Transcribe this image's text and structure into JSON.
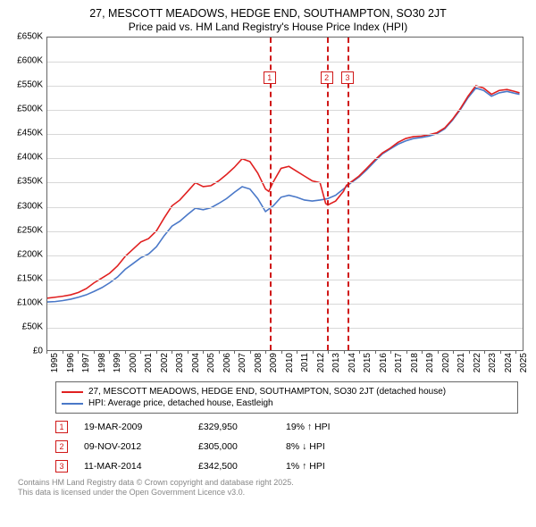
{
  "title": {
    "line1": "27, MESCOTT MEADOWS, HEDGE END, SOUTHAMPTON, SO30 2JT",
    "line2": "Price paid vs. HM Land Registry's House Price Index (HPI)",
    "fontsize_line1": 12.5,
    "fontsize_line2": 12,
    "color": "#000000"
  },
  "chart": {
    "type": "line",
    "background_color": "#ffffff",
    "grid_color": "#d8d8d8",
    "border_color": "#666666",
    "x": {
      "min": 1995,
      "max": 2025.5,
      "ticks": [
        1995,
        1996,
        1997,
        1998,
        1999,
        2000,
        2001,
        2002,
        2003,
        2004,
        2005,
        2006,
        2007,
        2008,
        2009,
        2010,
        2011,
        2012,
        2013,
        2014,
        2015,
        2016,
        2017,
        2018,
        2019,
        2020,
        2021,
        2022,
        2023,
        2024,
        2025
      ],
      "label_fontsize": 10,
      "label_rotation": -90
    },
    "y": {
      "min": 0,
      "max": 650000,
      "ticks": [
        0,
        50000,
        100000,
        150000,
        200000,
        250000,
        300000,
        350000,
        400000,
        450000,
        500000,
        550000,
        600000,
        650000
      ],
      "tick_labels": [
        "£0",
        "£50K",
        "£100K",
        "£150K",
        "£200K",
        "£250K",
        "£300K",
        "£350K",
        "£400K",
        "£450K",
        "£500K",
        "£550K",
        "£600K",
        "£650K"
      ],
      "label_fontsize": 10
    },
    "event_lines": {
      "color": "#d01818",
      "dash": "4,3",
      "width": 2,
      "marker_box_size": 14,
      "marker_font_size": 9,
      "events": [
        {
          "n": "1",
          "x": 2009.21
        },
        {
          "n": "2",
          "x": 2012.86
        },
        {
          "n": "3",
          "x": 2014.19
        }
      ]
    },
    "series": [
      {
        "name": "property",
        "label": "27, MESCOTT MEADOWS, HEDGE END, SOUTHAMPTON, SO30 2JT (detached house)",
        "color": "#e02020",
        "line_width": 1.6,
        "points": [
          [
            1995.0,
            108000
          ],
          [
            1995.5,
            110000
          ],
          [
            1996.0,
            112000
          ],
          [
            1996.5,
            115000
          ],
          [
            1997.0,
            120000
          ],
          [
            1997.5,
            128000
          ],
          [
            1998.0,
            140000
          ],
          [
            1998.5,
            150000
          ],
          [
            1999.0,
            160000
          ],
          [
            1999.5,
            175000
          ],
          [
            2000.0,
            195000
          ],
          [
            2000.5,
            210000
          ],
          [
            2001.0,
            225000
          ],
          [
            2001.5,
            232000
          ],
          [
            2002.0,
            248000
          ],
          [
            2002.5,
            275000
          ],
          [
            2003.0,
            300000
          ],
          [
            2003.5,
            312000
          ],
          [
            2004.0,
            330000
          ],
          [
            2004.5,
            348000
          ],
          [
            2005.0,
            340000
          ],
          [
            2005.5,
            342000
          ],
          [
            2006.0,
            352000
          ],
          [
            2006.5,
            365000
          ],
          [
            2007.0,
            380000
          ],
          [
            2007.5,
            398000
          ],
          [
            2008.0,
            392000
          ],
          [
            2008.5,
            368000
          ],
          [
            2009.0,
            335000
          ],
          [
            2009.21,
            329950
          ],
          [
            2009.5,
            350000
          ],
          [
            2010.0,
            378000
          ],
          [
            2010.5,
            382000
          ],
          [
            2011.0,
            372000
          ],
          [
            2011.5,
            362000
          ],
          [
            2012.0,
            352000
          ],
          [
            2012.5,
            348000
          ],
          [
            2012.86,
            305000
          ],
          [
            2013.0,
            302000
          ],
          [
            2013.5,
            310000
          ],
          [
            2014.0,
            330000
          ],
          [
            2014.19,
            342500
          ],
          [
            2014.5,
            350000
          ],
          [
            2015.0,
            362000
          ],
          [
            2015.5,
            378000
          ],
          [
            2016.0,
            395000
          ],
          [
            2016.5,
            410000
          ],
          [
            2017.0,
            420000
          ],
          [
            2017.5,
            432000
          ],
          [
            2018.0,
            440000
          ],
          [
            2018.5,
            444000
          ],
          [
            2019.0,
            445000
          ],
          [
            2019.5,
            448000
          ],
          [
            2020.0,
            452000
          ],
          [
            2020.5,
            462000
          ],
          [
            2021.0,
            480000
          ],
          [
            2021.5,
            502000
          ],
          [
            2022.0,
            528000
          ],
          [
            2022.5,
            550000
          ],
          [
            2023.0,
            545000
          ],
          [
            2023.5,
            532000
          ],
          [
            2024.0,
            540000
          ],
          [
            2024.5,
            542000
          ],
          [
            2025.0,
            538000
          ],
          [
            2025.3,
            535000
          ]
        ]
      },
      {
        "name": "hpi",
        "label": "HPI: Average price, detached house, Eastleigh",
        "color": "#4a78c8",
        "line_width": 1.6,
        "points": [
          [
            1995.0,
            100000
          ],
          [
            1995.5,
            101000
          ],
          [
            1996.0,
            103000
          ],
          [
            1996.5,
            106000
          ],
          [
            1997.0,
            110000
          ],
          [
            1997.5,
            115000
          ],
          [
            1998.0,
            122000
          ],
          [
            1998.5,
            130000
          ],
          [
            1999.0,
            140000
          ],
          [
            1999.5,
            152000
          ],
          [
            2000.0,
            168000
          ],
          [
            2000.5,
            180000
          ],
          [
            2001.0,
            192000
          ],
          [
            2001.5,
            200000
          ],
          [
            2002.0,
            215000
          ],
          [
            2002.5,
            238000
          ],
          [
            2003.0,
            258000
          ],
          [
            2003.5,
            268000
          ],
          [
            2004.0,
            282000
          ],
          [
            2004.5,
            295000
          ],
          [
            2005.0,
            292000
          ],
          [
            2005.5,
            296000
          ],
          [
            2006.0,
            305000
          ],
          [
            2006.5,
            315000
          ],
          [
            2007.0,
            328000
          ],
          [
            2007.5,
            340000
          ],
          [
            2008.0,
            335000
          ],
          [
            2008.5,
            315000
          ],
          [
            2009.0,
            288000
          ],
          [
            2009.5,
            300000
          ],
          [
            2010.0,
            318000
          ],
          [
            2010.5,
            322000
          ],
          [
            2011.0,
            318000
          ],
          [
            2011.5,
            312000
          ],
          [
            2012.0,
            310000
          ],
          [
            2012.5,
            312000
          ],
          [
            2013.0,
            315000
          ],
          [
            2013.5,
            322000
          ],
          [
            2014.0,
            335000
          ],
          [
            2014.5,
            348000
          ],
          [
            2015.0,
            360000
          ],
          [
            2015.5,
            375000
          ],
          [
            2016.0,
            392000
          ],
          [
            2016.5,
            408000
          ],
          [
            2017.0,
            418000
          ],
          [
            2017.5,
            428000
          ],
          [
            2018.0,
            435000
          ],
          [
            2018.5,
            440000
          ],
          [
            2019.0,
            442000
          ],
          [
            2019.5,
            445000
          ],
          [
            2020.0,
            450000
          ],
          [
            2020.5,
            460000
          ],
          [
            2021.0,
            478000
          ],
          [
            2021.5,
            500000
          ],
          [
            2022.0,
            525000
          ],
          [
            2022.5,
            545000
          ],
          [
            2023.0,
            540000
          ],
          [
            2023.5,
            528000
          ],
          [
            2024.0,
            535000
          ],
          [
            2024.5,
            538000
          ],
          [
            2025.0,
            534000
          ],
          [
            2025.3,
            532000
          ]
        ]
      }
    ]
  },
  "legend": {
    "border_color": "#666666",
    "fontsize": 10
  },
  "sales": [
    {
      "n": "1",
      "date": "19-MAR-2009",
      "price": "£329,950",
      "delta": "19% ↑ HPI"
    },
    {
      "n": "2",
      "date": "09-NOV-2012",
      "price": "£305,000",
      "delta": "8% ↓ HPI"
    },
    {
      "n": "3",
      "date": "11-MAR-2014",
      "price": "£342,500",
      "delta": "1% ↑ HPI"
    }
  ],
  "footer": {
    "line1": "Contains HM Land Registry data © Crown copyright and database right 2025.",
    "line2": "This data is licensed under the Open Government Licence v3.0.",
    "color": "#888888",
    "fontsize": 9
  }
}
